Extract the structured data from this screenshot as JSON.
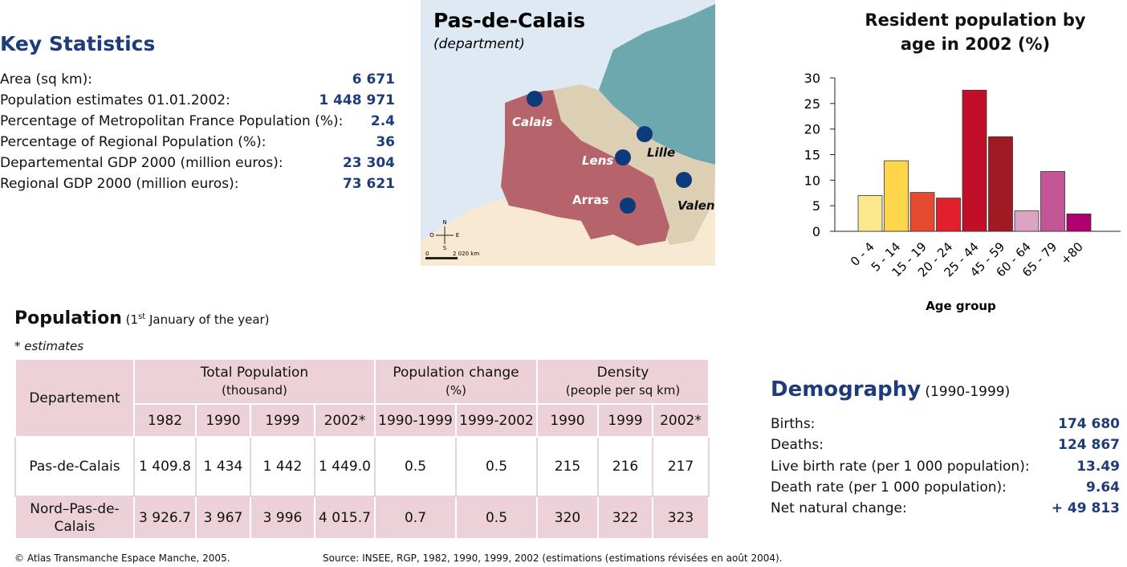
{
  "key_statistics": {
    "title": "Key Statistics",
    "rows": [
      [
        "Area (sq km):",
        "6 671"
      ],
      [
        "Population estimates 01.01.2002:",
        "1 448 971"
      ],
      [
        "Percentage of Metropolitan France Population (%):",
        "2.4"
      ],
      [
        "Percentage of Regional Population (%):",
        "36"
      ],
      [
        "Departemental GDP 2000 (million euros):",
        "23 304"
      ],
      [
        "Regional GDP 2000 (million euros):",
        "73 621"
      ]
    ]
  },
  "map": {
    "title": "Pas-de-Calais",
    "subtitle": "(department)",
    "cities": [
      "Calais",
      "Lille",
      "Lens",
      "Valenciennes",
      "Arras"
    ],
    "compass": [
      "N",
      "S",
      "O",
      "E"
    ],
    "scale": [
      "0",
      "2 020 km"
    ]
  },
  "chart_data": {
    "type": "bar",
    "title": "Resident population by age in 2002 (%)",
    "x_label": "Age group",
    "categories": [
      "0 - 4",
      "5 - 14",
      "15 - 19",
      "20 - 24",
      "25 - 44",
      "45 - 59",
      "60 - 64",
      "65 - 79",
      "+80"
    ],
    "values": [
      7,
      13.8,
      7.6,
      6.5,
      27.6,
      18.5,
      4,
      11.7,
      3.4
    ],
    "colors": [
      "#fbe88e",
      "#fdd64c",
      "#e64a30",
      "#e2202c",
      "#c10f2a",
      "#a01a24",
      "#dca4c4",
      "#c45596",
      "#b0006e"
    ],
    "ylim": [
      0,
      30
    ],
    "yticks": [
      0,
      5,
      10,
      15,
      20,
      25,
      30
    ]
  },
  "population": {
    "title": "Population",
    "note": [
      "(1",
      "st",
      " January of the year)"
    ],
    "footnote": "* estimates",
    "table": {
      "header": [
        "Departement",
        "Total Population",
        "(thousand)",
        "Population change",
        "(%)",
        "Density",
        "(people per sq km)"
      ],
      "years": [
        "1982",
        "1990",
        "1999",
        "2002*",
        "1990-1999",
        "1999-2002",
        "1990",
        "1999",
        "2002*"
      ],
      "rows": [
        [
          "Pas-de-Calais",
          "1 409.8",
          "1 434",
          "1 442",
          "1 449.0",
          "0.5",
          "0.5",
          "215",
          "216",
          "217"
        ],
        [
          "Nord–Pas-de-Calais",
          "3 926.7",
          "3 967",
          "3 996",
          "4 015.7",
          "0.7",
          "0.5",
          "320",
          "322",
          "323"
        ]
      ]
    }
  },
  "demography": {
    "title": "Demography",
    "subtitle": "(1990-1999)",
    "rows": [
      [
        "Births:",
        "174 680"
      ],
      [
        "Deaths:",
        "124 867"
      ],
      [
        "Live birth rate (per 1 000 population):",
        "13.49"
      ],
      [
        "Death rate (per 1 000 population):",
        "9.64"
      ],
      [
        "Net natural change:",
        "+ 49 813"
      ]
    ]
  },
  "footer": {
    "copyright": "© Atlas Transmanche Espace Manche, 2005.",
    "source": "Source: INSEE, RGP, 1982, 1990, 1999, 2002 (estimations (estimations révisées en août 2004)."
  }
}
